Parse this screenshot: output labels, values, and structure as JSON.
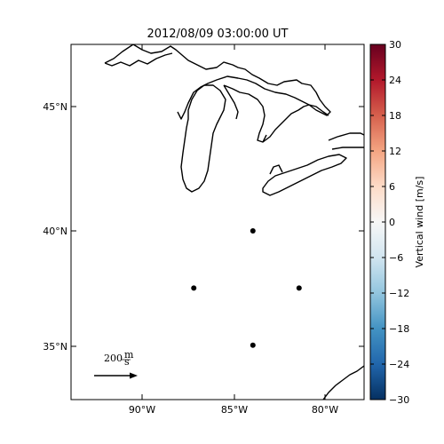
{
  "title": "2012/08/09 03:00:00 UT",
  "map": {
    "lat_ticks": [
      "45°N",
      "40°N",
      "35°N"
    ],
    "lon_ticks": [
      "90°W",
      "85°W",
      "80°W"
    ],
    "stations": [
      {
        "lon": -84.0,
        "lat": 40.0
      },
      {
        "lon": -87.2,
        "lat": 37.7
      },
      {
        "lon": -81.5,
        "lat": 37.7
      },
      {
        "lon": -84.0,
        "lat": 35.4
      }
    ],
    "scale_vector": {
      "value": "200",
      "unit_num": "m",
      "unit_den": "s"
    }
  },
  "colorbar": {
    "label": "Vertical wind [m/s]",
    "ticks": [
      "30",
      "24",
      "18",
      "12",
      "6",
      "0",
      "−6",
      "−12",
      "−18",
      "−24",
      "−30"
    ],
    "range": [
      -30,
      30
    ],
    "colors": [
      "#053061",
      "#2166ac",
      "#4393c3",
      "#92c5de",
      "#d1e5f0",
      "#f7f7f7",
      "#fddbc7",
      "#f4a582",
      "#d6604d",
      "#b2182b",
      "#67001f"
    ]
  }
}
